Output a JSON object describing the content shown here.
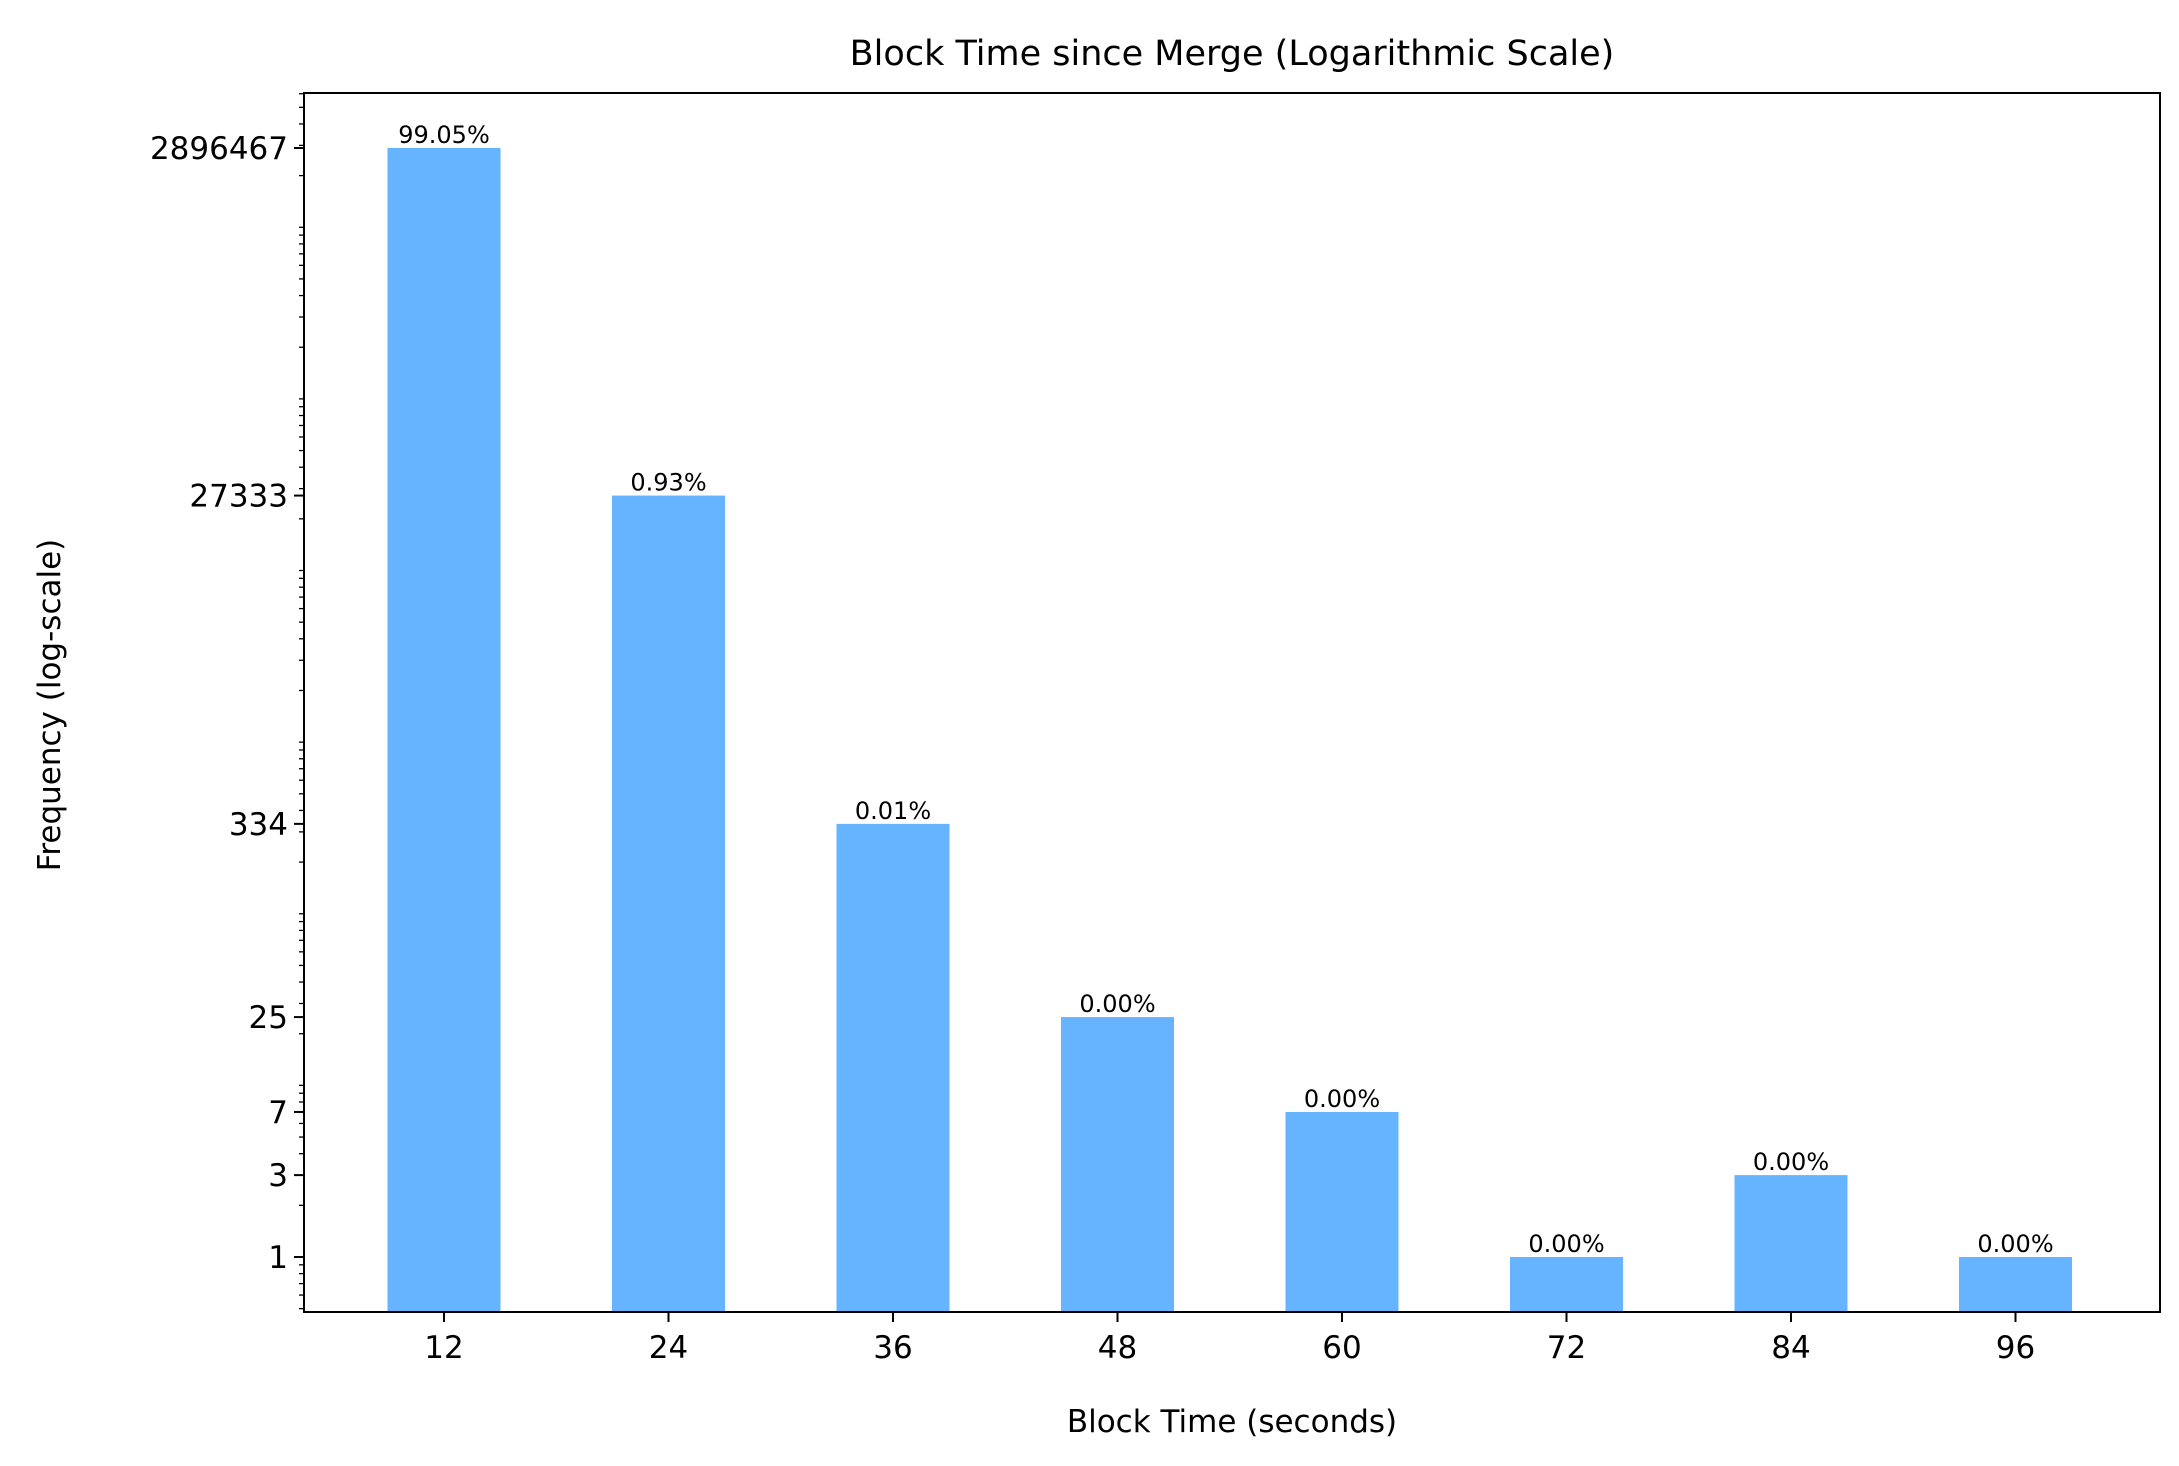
{
  "chart_data": {
    "type": "bar",
    "title": "Block Time since Merge (Logarithmic Scale)",
    "xlabel": "Block Time (seconds)",
    "ylabel": "Frequency (log-scale)",
    "yscale": "log",
    "ylim": [
      0.5,
      6000000
    ],
    "categories": [
      "12",
      "24",
      "36",
      "48",
      "60",
      "72",
      "84",
      "96"
    ],
    "values": [
      2896467,
      27333,
      334,
      25,
      7,
      1,
      3,
      1
    ],
    "data_labels": [
      "99.05%",
      "0.93%",
      "0.01%",
      "0.00%",
      "0.00%",
      "0.00%",
      "0.00%",
      "0.00%"
    ],
    "ytick_labels": [
      "2896467",
      "27333",
      "334",
      "25",
      "7",
      "3",
      "1"
    ],
    "bar_color": "#66b3ff",
    "grid": false,
    "legend": false
  }
}
